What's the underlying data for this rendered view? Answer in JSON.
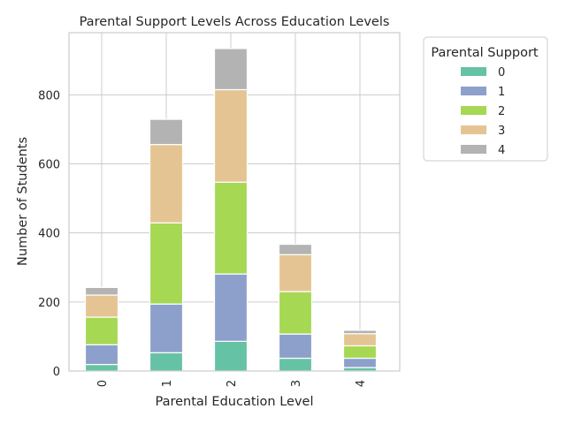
{
  "chart_data": {
    "type": "bar",
    "stacked": true,
    "title": "Parental Support Levels Across Education Levels",
    "xlabel": "Parental Education Level",
    "ylabel": "Number of Students",
    "categories": [
      "0",
      "1",
      "2",
      "3",
      "4"
    ],
    "ylim": [
      0,
      980
    ],
    "yticks": [
      0,
      200,
      400,
      600,
      800
    ],
    "grid": true,
    "legend": {
      "title": "Parental Support",
      "placement": "outside-right-top"
    },
    "series": [
      {
        "name": "0",
        "color": "#66c2a5",
        "values": [
          19,
          53,
          86,
          37,
          10
        ]
      },
      {
        "name": "1",
        "color": "#8da0cb",
        "values": [
          57,
          141,
          195,
          70,
          27
        ]
      },
      {
        "name": "2",
        "color": "#a6d854",
        "values": [
          80,
          235,
          266,
          123,
          36
        ]
      },
      {
        "name": "3",
        "color": "#e5c494",
        "values": [
          64,
          227,
          268,
          107,
          35
        ]
      },
      {
        "name": "4",
        "color": "#b3b3b3",
        "values": [
          22,
          73,
          119,
          30,
          10
        ]
      }
    ]
  }
}
